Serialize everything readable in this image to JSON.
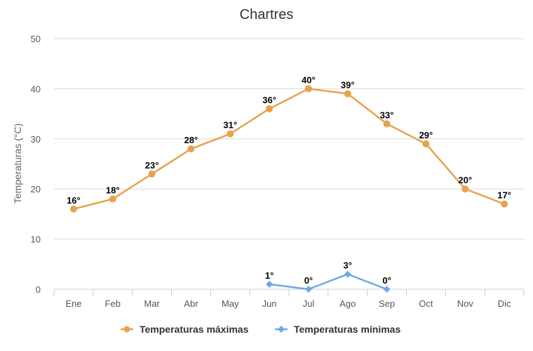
{
  "chart_data": {
    "type": "line",
    "title": "Chartres",
    "ylabel": "Temperaturas (°C)",
    "xlabel": "",
    "ylim": [
      0,
      50
    ],
    "yticks": [
      0,
      10,
      20,
      30,
      40,
      50
    ],
    "grid": true,
    "legend_position": "bottom",
    "categories": [
      "Ene",
      "Feb",
      "Mar",
      "Abr",
      "May",
      "Jun",
      "Jul",
      "Ago",
      "Sep",
      "Oct",
      "Nov",
      "Dic"
    ],
    "series": [
      {
        "name": "Temperaturas máximas",
        "color": "#e8a24f",
        "marker": "circle",
        "values": [
          16,
          18,
          23,
          28,
          31,
          36,
          40,
          39,
          33,
          29,
          20,
          17
        ],
        "labels": [
          "16°",
          "18°",
          "23°",
          "28°",
          "31°",
          "36°",
          "40°",
          "39°",
          "33°",
          "29°",
          "20°",
          "17°"
        ]
      },
      {
        "name": "Temperaturas mínimas",
        "color": "#6fa8e6",
        "marker": "diamond",
        "values": [
          null,
          null,
          null,
          null,
          null,
          1,
          0,
          3,
          0,
          null,
          null,
          null
        ],
        "labels": [
          null,
          null,
          null,
          null,
          null,
          "1°",
          "0°",
          "3°",
          "0°",
          null,
          null,
          null
        ]
      }
    ]
  }
}
